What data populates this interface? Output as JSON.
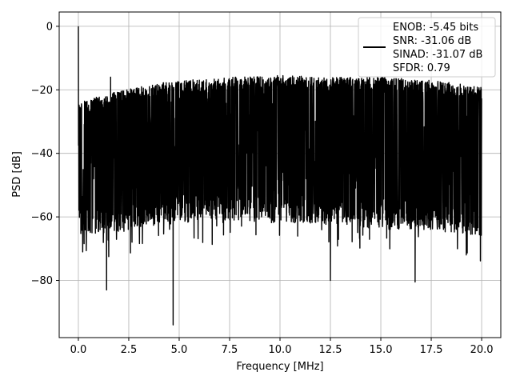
{
  "chart_data": {
    "type": "line",
    "title": "",
    "xlabel": "Frequency [MHz]",
    "ylabel": "PSD [dB]",
    "xlim": [
      -0.95,
      20.95
    ],
    "ylim": [
      -98,
      4.5
    ],
    "grid": true,
    "x_ticks": [
      0.0,
      2.5,
      5.0,
      7.5,
      10.0,
      12.5,
      15.0,
      17.5,
      20.0
    ],
    "x_tick_labels": [
      "0.0",
      "2.5",
      "5.0",
      "7.5",
      "10.0",
      "12.5",
      "15.0",
      "17.5",
      "20.0"
    ],
    "y_ticks": [
      0,
      -20,
      -40,
      -60,
      -80
    ],
    "y_tick_labels": [
      "0",
      "−20",
      "−40",
      "−60",
      "−80"
    ],
    "legend_position": "top-right",
    "legend_entries": [
      "ENOB: -5.45 bits",
      "SNR: -31.06 dB",
      "SINAD: -31.07 dB",
      "SFDR: 0.79"
    ],
    "series": [
      {
        "color": "#000000",
        "x_range": [
          0,
          20
        ],
        "peaks": [
          {
            "x": 0.0,
            "y": 0
          },
          {
            "x": 1.6,
            "y": -16
          },
          {
            "x": 4.7,
            "y": -94
          },
          {
            "x": 1.4,
            "y": -83
          },
          {
            "x": 12.5,
            "y": -80
          },
          {
            "x": 16.7,
            "y": -80.5
          }
        ],
        "upper_envelope": [
          [
            0.1,
            -24
          ],
          [
            1.0,
            -22
          ],
          [
            3.0,
            -19
          ],
          [
            5.0,
            -17
          ],
          [
            7.5,
            -16
          ],
          [
            10.0,
            -15.5
          ],
          [
            12.5,
            -16
          ],
          [
            15.0,
            -16
          ],
          [
            17.5,
            -17
          ],
          [
            20.0,
            -19
          ]
        ],
        "lower_envelope": [
          [
            0.1,
            -66
          ],
          [
            2.5,
            -64
          ],
          [
            5.0,
            -61
          ],
          [
            7.5,
            -61
          ],
          [
            10.0,
            -62
          ],
          [
            12.5,
            -62
          ],
          [
            15.0,
            -64
          ],
          [
            17.5,
            -64
          ],
          [
            20.0,
            -66
          ]
        ]
      }
    ]
  }
}
